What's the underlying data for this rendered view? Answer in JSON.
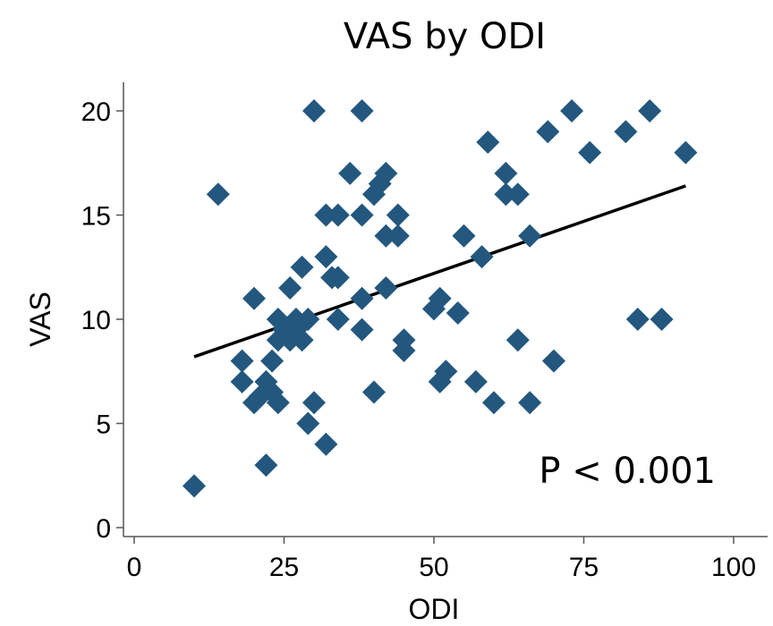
{
  "chart_data": {
    "type": "scatter",
    "title": "VAS by ODI",
    "xlabel": "ODI",
    "ylabel": "VAS",
    "xlim": [
      0,
      100
    ],
    "ylim": [
      0,
      20
    ],
    "xticks": [
      0,
      25,
      50,
      75,
      100
    ],
    "yticks": [
      0,
      5,
      10,
      15,
      20
    ],
    "xtick_labels": [
      "0",
      "25",
      "50",
      "75",
      "100"
    ],
    "ytick_labels": [
      "0",
      "5",
      "10",
      "15",
      "20"
    ],
    "grid": false,
    "marker": "diamond",
    "marker_color": "#23577e",
    "fit_line": {
      "x": [
        10,
        92
      ],
      "y": [
        8.2,
        16.4
      ],
      "color": "#000000"
    },
    "annotation": "P < 0.001",
    "series": [
      {
        "points": [
          [
            10,
            2
          ],
          [
            14,
            16
          ],
          [
            18,
            8
          ],
          [
            18,
            7
          ],
          [
            20,
            11
          ],
          [
            20,
            6
          ],
          [
            21,
            6.3
          ],
          [
            22,
            7
          ],
          [
            22,
            3
          ],
          [
            23,
            8
          ],
          [
            23,
            6.5
          ],
          [
            24,
            10
          ],
          [
            24,
            9
          ],
          [
            24,
            6
          ],
          [
            25,
            9.5
          ],
          [
            26,
            11.5
          ],
          [
            26,
            9
          ],
          [
            27,
            10
          ],
          [
            27,
            9.5
          ],
          [
            28,
            12.5
          ],
          [
            28,
            9
          ],
          [
            29,
            10
          ],
          [
            29,
            5
          ],
          [
            30,
            20
          ],
          [
            30,
            6
          ],
          [
            32,
            15
          ],
          [
            32,
            13
          ],
          [
            32,
            4
          ],
          [
            33,
            12
          ],
          [
            34,
            15
          ],
          [
            34,
            12
          ],
          [
            34,
            10
          ],
          [
            36,
            17
          ],
          [
            38,
            20
          ],
          [
            38,
            15
          ],
          [
            38,
            11
          ],
          [
            38,
            9.5
          ],
          [
            40,
            16
          ],
          [
            40,
            6.5
          ],
          [
            41,
            16.5
          ],
          [
            42,
            17
          ],
          [
            42,
            14
          ],
          [
            42,
            11.5
          ],
          [
            44,
            15
          ],
          [
            44,
            14
          ],
          [
            45,
            9
          ],
          [
            45,
            8.5
          ],
          [
            50,
            10.5
          ],
          [
            51,
            11
          ],
          [
            51,
            7
          ],
          [
            52,
            7.5
          ],
          [
            54,
            10.3
          ],
          [
            55,
            14
          ],
          [
            57,
            7
          ],
          [
            58,
            13
          ],
          [
            59,
            18.5
          ],
          [
            60,
            6
          ],
          [
            62,
            17
          ],
          [
            62,
            16
          ],
          [
            64,
            16
          ],
          [
            64,
            9
          ],
          [
            66,
            14
          ],
          [
            66,
            6
          ],
          [
            69,
            19
          ],
          [
            70,
            8
          ],
          [
            73,
            20
          ],
          [
            76,
            18
          ],
          [
            82,
            19
          ],
          [
            84,
            10
          ],
          [
            86,
            20
          ],
          [
            88,
            10
          ],
          [
            92,
            18
          ]
        ]
      }
    ]
  }
}
